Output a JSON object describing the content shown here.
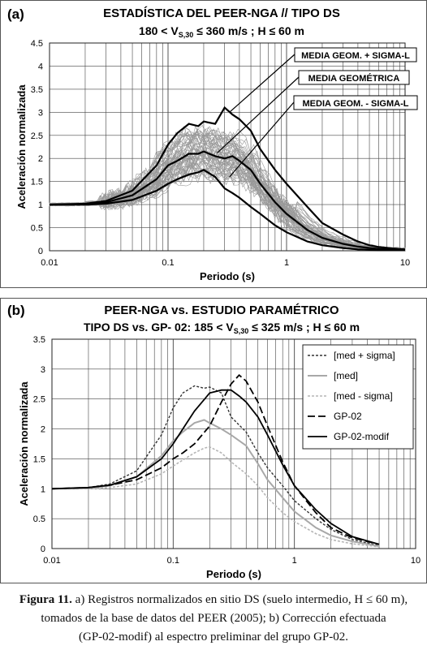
{
  "panel_a": {
    "panel_letter": "(a)",
    "title_line1": "ESTADÍSTICA DEL PEER-NGA  //  TIPO DS",
    "title_line2_prefix": "180 < V",
    "title_line2_sub": "S,30",
    "title_line2_suffix": " ≤ 360 m/s  ;   H ≤ 60 m",
    "callout_labels": [
      "MEDIA GEOM. + SIGMA-L",
      "MEDIA GEOMÉTRICA",
      "MEDIA GEOM. - SIGMA-L"
    ]
  },
  "panel_b": {
    "panel_letter": "(b)",
    "title_line1": "PEER-NGA vs. ESTUDIO PARAMÉTRICO",
    "title_line2_prefix": "TIPO DS vs. GP- 02:  185 < V",
    "title_line2_sub": "S,30",
    "title_line2_suffix": " ≤ 325 m/s ;  H ≤ 60 m"
  },
  "caption": {
    "label": "Figura 11.",
    "line1": " a) Registros normalizados en sitio DS (suelo intermedio, H ≤ 60 m),",
    "line2": "tomados de la base de datos del PEER (2005); b) Corrección efectuada",
    "line3": "(GP-02-modif) al espectro preliminar del grupo GP-02."
  },
  "chart_data": [
    {
      "type": "line",
      "panel": "a",
      "xscale": "log",
      "xlim": [
        0.01,
        10
      ],
      "ylim": [
        0,
        4.5
      ],
      "xlabel": "Periodo (s)",
      "ylabel": "Aceleración normalizada",
      "xticks": [
        "0.01",
        "0.1",
        "1",
        "10"
      ],
      "yticks": [
        "0",
        "0.5",
        "1",
        "1.5",
        "2",
        "2.5",
        "3",
        "3.5",
        "4",
        "4.5"
      ],
      "grid": true,
      "series": [
        {
          "name": "MEDIA GEOM. + SIGMA-L",
          "x": [
            0.01,
            0.02,
            0.03,
            0.05,
            0.08,
            0.1,
            0.12,
            0.15,
            0.18,
            0.2,
            0.25,
            0.3,
            0.35,
            0.4,
            0.5,
            0.6,
            0.8,
            1,
            1.5,
            2,
            3,
            4,
            5,
            6,
            8,
            10
          ],
          "y": [
            1,
            1.02,
            1.08,
            1.3,
            1.85,
            2.3,
            2.55,
            2.75,
            2.7,
            2.8,
            2.75,
            3.1,
            2.95,
            2.85,
            2.6,
            2.2,
            1.75,
            1.45,
            0.95,
            0.6,
            0.35,
            0.2,
            0.12,
            0.08,
            0.05,
            0.03
          ]
        },
        {
          "name": "MEDIA GEOMÉTRICA",
          "x": [
            0.01,
            0.02,
            0.03,
            0.05,
            0.08,
            0.1,
            0.12,
            0.15,
            0.18,
            0.2,
            0.25,
            0.3,
            0.35,
            0.4,
            0.5,
            0.6,
            0.8,
            1,
            1.5,
            2,
            3,
            4,
            5,
            6,
            8,
            10
          ],
          "y": [
            1,
            1.01,
            1.05,
            1.2,
            1.55,
            1.85,
            1.95,
            2.1,
            2.1,
            2.15,
            2.05,
            2.0,
            2.05,
            1.95,
            1.75,
            1.45,
            1.05,
            0.8,
            0.45,
            0.28,
            0.15,
            0.09,
            0.06,
            0.04,
            0.03,
            0.02
          ]
        },
        {
          "name": "MEDIA GEOM. - SIGMA-L",
          "x": [
            0.01,
            0.02,
            0.03,
            0.05,
            0.08,
            0.1,
            0.12,
            0.15,
            0.18,
            0.2,
            0.25,
            0.3,
            0.35,
            0.4,
            0.5,
            0.6,
            0.8,
            1,
            1.5,
            2,
            3,
            4,
            5,
            6,
            8,
            10
          ],
          "y": [
            1,
            1.0,
            1.02,
            1.1,
            1.3,
            1.45,
            1.55,
            1.65,
            1.7,
            1.75,
            1.6,
            1.35,
            1.25,
            1.15,
            0.95,
            0.8,
            0.55,
            0.4,
            0.2,
            0.12,
            0.06,
            0.03,
            0.02,
            0.01,
            0.01,
            0.01
          ]
        }
      ]
    },
    {
      "type": "line",
      "panel": "b",
      "xscale": "log",
      "xlim": [
        0.01,
        10
      ],
      "ylim": [
        0,
        3.5
      ],
      "xlabel": "Periodo (s)",
      "ylabel": "Aceleración normalizada",
      "xticks": [
        "0.01",
        "0.1",
        "1",
        "10"
      ],
      "yticks": [
        "0",
        "0.5",
        "1",
        "1.5",
        "2",
        "2.5",
        "3",
        "3.5"
      ],
      "grid": true,
      "legend_position": "top-right",
      "series": [
        {
          "name": "[med + sigma]",
          "style": "dotted-dark",
          "x": [
            0.01,
            0.02,
            0.03,
            0.05,
            0.08,
            0.1,
            0.12,
            0.15,
            0.18,
            0.2,
            0.25,
            0.3,
            0.4,
            0.5,
            0.6,
            0.8,
            1,
            1.5,
            2,
            3,
            5
          ],
          "y": [
            1,
            1.02,
            1.08,
            1.3,
            1.9,
            2.35,
            2.6,
            2.72,
            2.68,
            2.7,
            2.6,
            2.2,
            1.95,
            1.6,
            1.35,
            1.05,
            0.8,
            0.5,
            0.32,
            0.15,
            0.05
          ]
        },
        {
          "name": "[med]",
          "style": "solid-gray",
          "x": [
            0.01,
            0.02,
            0.03,
            0.05,
            0.08,
            0.1,
            0.12,
            0.15,
            0.18,
            0.2,
            0.25,
            0.3,
            0.4,
            0.5,
            0.6,
            0.8,
            1,
            1.5,
            2,
            3,
            5
          ],
          "y": [
            1,
            1.01,
            1.05,
            1.2,
            1.55,
            1.8,
            1.95,
            2.1,
            2.15,
            2.1,
            2.0,
            1.9,
            1.72,
            1.42,
            1.15,
            0.85,
            0.62,
            0.35,
            0.22,
            0.12,
            0.04
          ]
        },
        {
          "name": "[med -  sigma]",
          "style": "dotted-light",
          "x": [
            0.01,
            0.02,
            0.03,
            0.05,
            0.08,
            0.1,
            0.12,
            0.15,
            0.18,
            0.2,
            0.25,
            0.3,
            0.4,
            0.5,
            0.6,
            0.8,
            1,
            1.5,
            2,
            3,
            5
          ],
          "y": [
            1,
            1.0,
            1.02,
            1.08,
            1.25,
            1.38,
            1.48,
            1.6,
            1.68,
            1.7,
            1.6,
            1.45,
            1.25,
            1.05,
            0.85,
            0.6,
            0.45,
            0.25,
            0.15,
            0.08,
            0.03
          ]
        },
        {
          "name": "GP-02",
          "style": "dashed-black",
          "x": [
            0.01,
            0.02,
            0.03,
            0.05,
            0.08,
            0.1,
            0.12,
            0.15,
            0.2,
            0.25,
            0.3,
            0.35,
            0.4,
            0.5,
            0.6,
            0.8,
            1,
            1.5,
            2,
            3,
            5
          ],
          "y": [
            1,
            1.02,
            1.06,
            1.15,
            1.35,
            1.5,
            1.6,
            1.75,
            2.05,
            2.45,
            2.75,
            2.9,
            2.8,
            2.45,
            2.05,
            1.45,
            1.05,
            0.6,
            0.35,
            0.18,
            0.07
          ]
        },
        {
          "name": "GP-02-modif",
          "style": "solid-black",
          "x": [
            0.01,
            0.02,
            0.03,
            0.05,
            0.08,
            0.1,
            0.12,
            0.15,
            0.2,
            0.25,
            0.3,
            0.35,
            0.4,
            0.5,
            0.6,
            0.8,
            1,
            1.5,
            2,
            3,
            5
          ],
          "y": [
            1,
            1.02,
            1.06,
            1.2,
            1.5,
            1.75,
            2.0,
            2.3,
            2.6,
            2.65,
            2.65,
            2.55,
            2.45,
            2.2,
            1.9,
            1.4,
            1.05,
            0.65,
            0.42,
            0.2,
            0.07
          ]
        }
      ]
    }
  ]
}
